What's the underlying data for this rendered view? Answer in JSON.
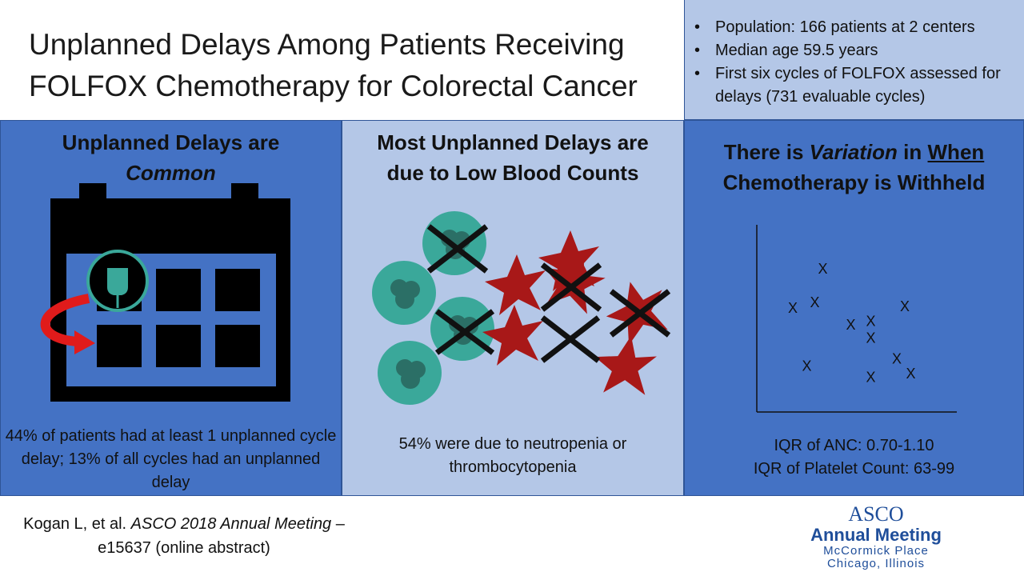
{
  "title": {
    "line1": "Unplanned Delays Among Patients Receiving",
    "line2": "FOLFOX Chemotherapy for Colorectal Cancer"
  },
  "summary": {
    "bullets": [
      "Population: 166 patients at 2 centers",
      "Median age 59.5 years",
      "First six cycles of FOLFOX assessed for delays (731 evaluable cycles)"
    ]
  },
  "panel1": {
    "heading_line1": "Unplanned Delays are",
    "heading_line2": "Common",
    "caption": "44% of patients had at least 1 unplanned cycle delay; 13% of all cycles had an unplanned delay",
    "icon": "calendar-icon"
  },
  "panel2": {
    "heading_line1": "Most Unplanned Delays are",
    "heading_line2": "due to Low Blood Counts",
    "caption": "54% were due to neutropenia or thrombocytopenia",
    "icons": [
      "neutrophil-icon",
      "platelet-icon"
    ]
  },
  "panel3": {
    "heading_pre": "There is ",
    "heading_variation": "Variation",
    "heading_mid": " in ",
    "heading_when": "When",
    "heading_line2": "Chemotherapy is Withheld",
    "iqr_anc": "IQR of ANC: 0.70-1.10",
    "iqr_platelet": "IQR of Platelet Count: 63-99"
  },
  "chart_data": {
    "type": "scatter",
    "marker": "X",
    "xlabel": "",
    "ylabel": "",
    "xlim": [
      0,
      10
    ],
    "ylim": [
      0,
      10
    ],
    "grid": false,
    "x": [
      1.8,
      3.3,
      2.9,
      5.7,
      4.7,
      5.7,
      7.4,
      2.5,
      7.0,
      7.7,
      5.7
    ],
    "y": [
      5.5,
      7.6,
      5.8,
      4.8,
      4.6,
      3.9,
      5.6,
      2.4,
      2.8,
      2.0,
      1.8
    ]
  },
  "citation": {
    "line1_author": "Kogan L, et al. ",
    "line1_meeting": "ASCO 2018 Annual Meeting",
    "line1_dash": " –",
    "line2": "e15637 (online abstract)"
  },
  "logo": {
    "brand": "ASCO",
    "event": "Annual Meeting",
    "venue": "McCormick Place",
    "city": "Chicago, Illinois"
  },
  "colors": {
    "panel_dark": "#4472c4",
    "panel_light": "#b4c7e7",
    "neutrophil": "#3aa89a",
    "platelet": "#a81818",
    "arrow": "#e01b1b"
  }
}
